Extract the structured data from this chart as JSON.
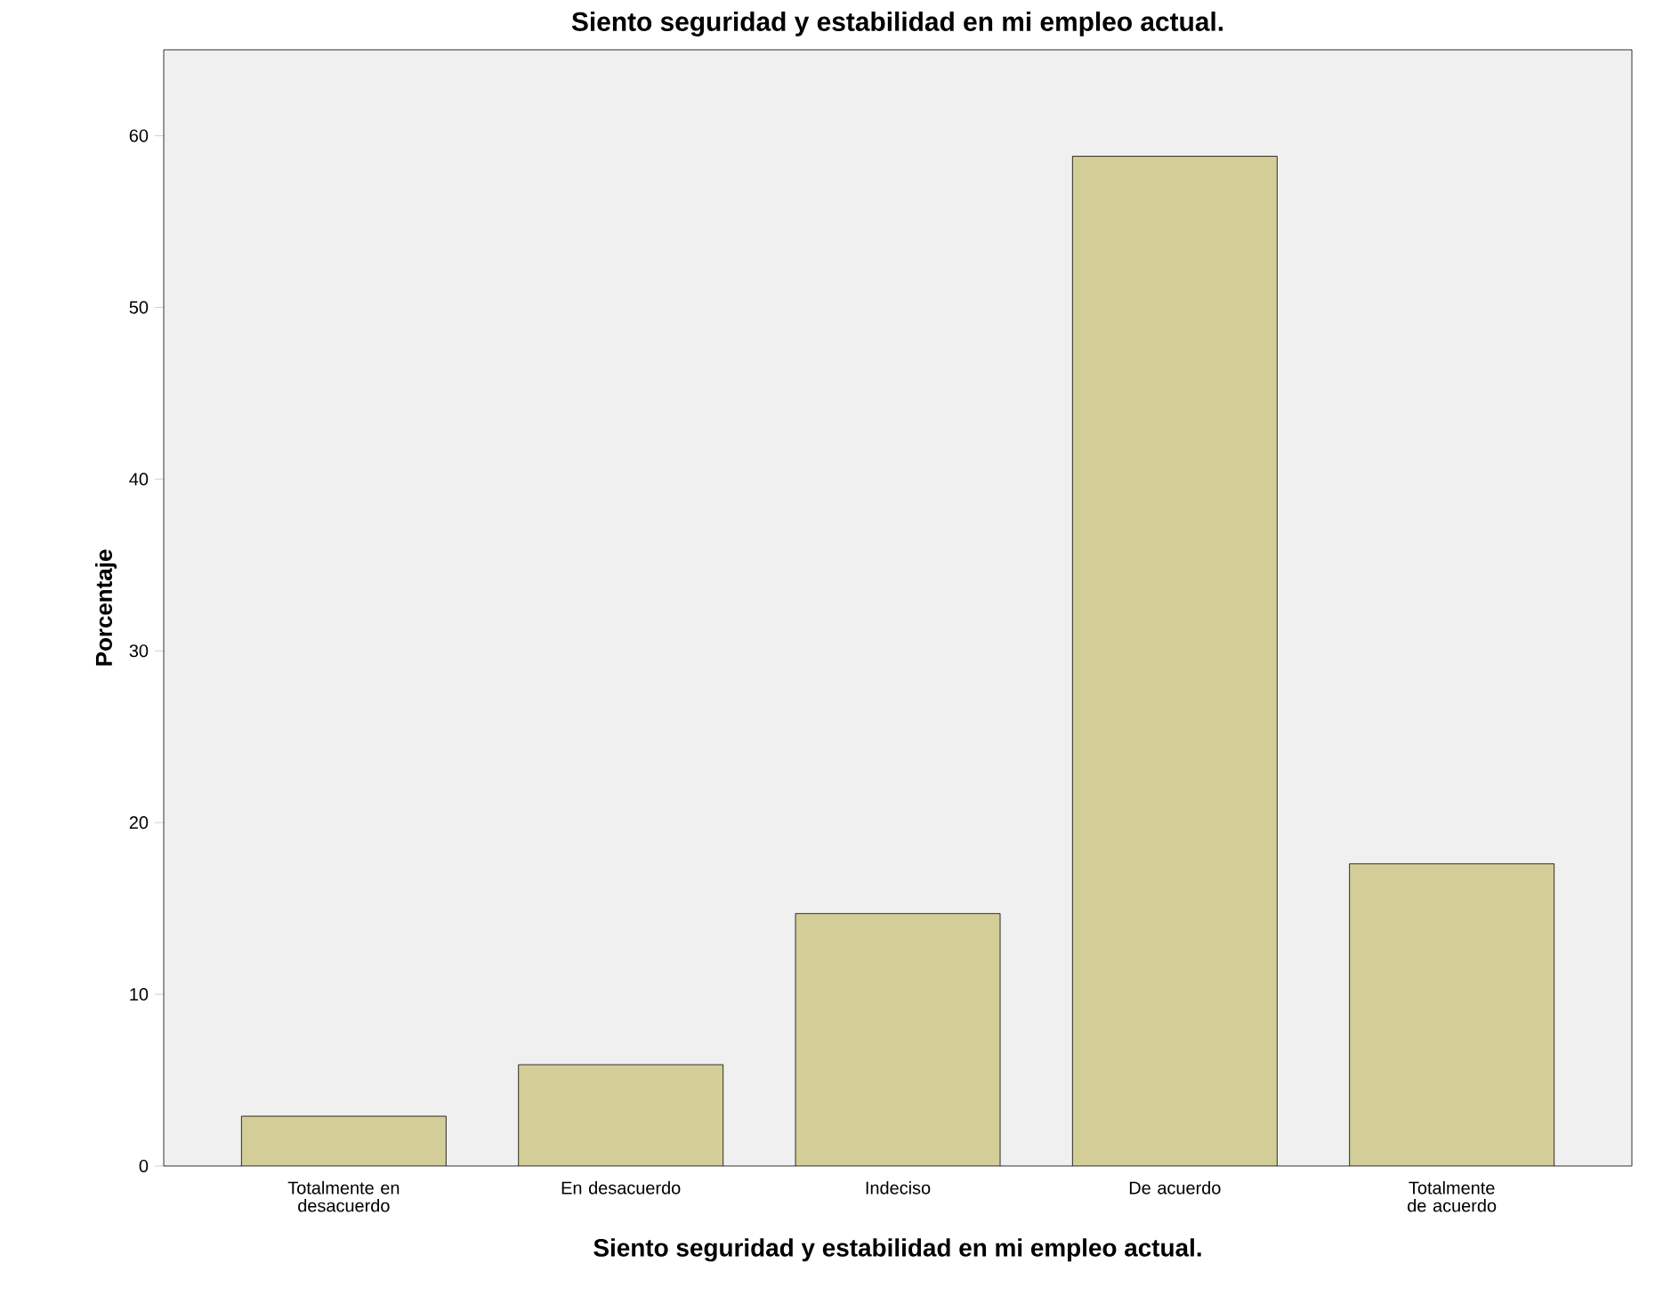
{
  "chart_data": {
    "type": "bar",
    "title": "Siento seguridad y estabilidad en mi empleo actual.",
    "xlabel": "Siento seguridad y estabilidad en mi empleo actual.",
    "ylabel": "Porcentaje",
    "categories": [
      "Totalmente en desacuerdo",
      "En desacuerdo",
      "Indeciso",
      "De acuerdo",
      "Totalmente de acuerdo"
    ],
    "values": [
      2.9,
      5.9,
      14.7,
      58.8,
      17.6
    ],
    "color": "#d3ce97",
    "ylim": [
      0,
      65
    ],
    "yticks": [
      0,
      10,
      20,
      30,
      40,
      50,
      60
    ],
    "grid": false
  }
}
